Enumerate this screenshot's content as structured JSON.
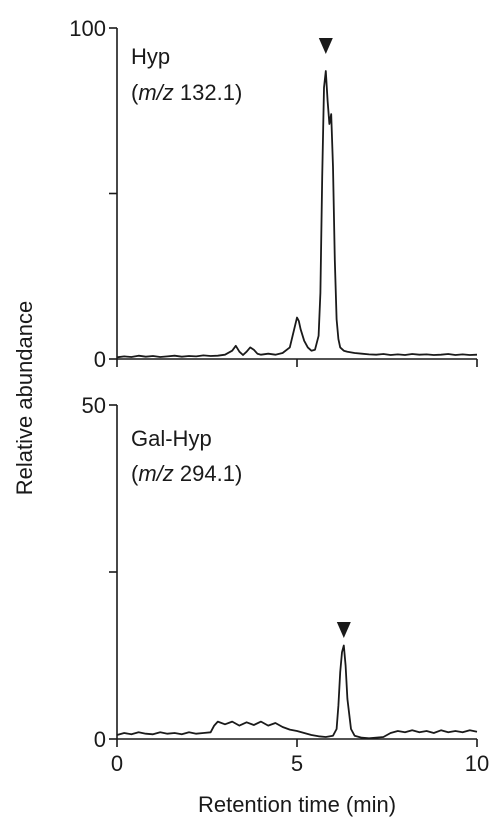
{
  "colors": {
    "trace": "#1a1a1a",
    "axis": "#1a1a1a"
  },
  "chart_data": [
    {
      "type": "line",
      "panel": "top",
      "ylabel": "",
      "xlim": [
        0,
        10
      ],
      "ylim": [
        0,
        100
      ],
      "yticks": [
        0,
        50,
        100
      ],
      "ytick_labels": [
        "0",
        "",
        "100"
      ],
      "xticks": [
        0,
        5,
        10
      ],
      "xtick_labels": [
        "",
        "",
        ""
      ],
      "annotation": {
        "name": "Hyp",
        "mz_prefix": "(",
        "mz_italic": "m/z",
        "mz_value": " 132.1)"
      },
      "marker": {
        "symbol": "▼",
        "x": 5.8
      },
      "series": [
        {
          "x": [
            0,
            0.2,
            0.4,
            0.6,
            0.8,
            1.0,
            1.2,
            1.4,
            1.6,
            1.8,
            2.0,
            2.2,
            2.4,
            2.6,
            2.8,
            3.0,
            3.2,
            3.3,
            3.4,
            3.5,
            3.6,
            3.7,
            3.8,
            3.9,
            4.0,
            4.2,
            4.4,
            4.6,
            4.8,
            4.9,
            5.0,
            5.05,
            5.1,
            5.2,
            5.3,
            5.4,
            5.5,
            5.6,
            5.65,
            5.7,
            5.75,
            5.8,
            5.85,
            5.9,
            5.95,
            6.0,
            6.05,
            6.1,
            6.15,
            6.2,
            6.3,
            6.4,
            6.6,
            6.8,
            7.0,
            7.2,
            7.4,
            7.6,
            7.8,
            8.0,
            8.2,
            8.4,
            8.6,
            8.8,
            9.0,
            9.2,
            9.4,
            9.6,
            9.8,
            10.0
          ],
          "y": [
            0.5,
            0.8,
            0.6,
            1.0,
            0.7,
            0.9,
            0.6,
            0.8,
            1.0,
            0.7,
            0.9,
            0.8,
            1.1,
            0.9,
            1.0,
            1.3,
            2.5,
            4.0,
            2.2,
            1.2,
            2.2,
            3.5,
            2.8,
            1.6,
            1.3,
            1.6,
            1.3,
            1.8,
            3.5,
            8.0,
            12.5,
            11.5,
            9.0,
            5.5,
            3.5,
            2.5,
            2.8,
            7.0,
            20.0,
            55.0,
            82.0,
            87.0,
            78.0,
            71.0,
            74.0,
            58.0,
            30.0,
            12.0,
            6.0,
            3.5,
            2.5,
            2.2,
            1.8,
            1.6,
            1.4,
            1.3,
            1.5,
            1.2,
            1.4,
            1.2,
            1.5,
            1.3,
            1.4,
            1.2,
            1.3,
            1.5,
            1.2,
            1.4,
            1.2,
            1.3
          ]
        }
      ]
    },
    {
      "type": "line",
      "panel": "bottom",
      "xlabel": "Retention time (min)",
      "xlim": [
        0,
        10
      ],
      "ylim": [
        0,
        50
      ],
      "yticks": [
        0,
        25,
        50
      ],
      "ytick_labels": [
        "0",
        "",
        "50"
      ],
      "xticks": [
        0,
        5,
        10
      ],
      "xtick_labels": [
        "0",
        "5",
        "10"
      ],
      "annotation": {
        "name": "Gal-Hyp",
        "mz_prefix": "(",
        "mz_italic": "m/z",
        "mz_value": " 294.1)"
      },
      "marker": {
        "symbol": "▼",
        "x": 6.3
      },
      "series": [
        {
          "x": [
            0,
            0.2,
            0.4,
            0.6,
            0.8,
            1.0,
            1.2,
            1.4,
            1.6,
            1.8,
            2.0,
            2.2,
            2.4,
            2.6,
            2.7,
            2.8,
            3.0,
            3.2,
            3.4,
            3.6,
            3.8,
            4.0,
            4.2,
            4.4,
            4.6,
            4.8,
            5.0,
            5.2,
            5.4,
            5.6,
            5.8,
            6.0,
            6.1,
            6.15,
            6.2,
            6.25,
            6.3,
            6.35,
            6.4,
            6.5,
            6.6,
            6.8,
            7.0,
            7.2,
            7.4,
            7.6,
            7.8,
            8.0,
            8.2,
            8.4,
            8.6,
            8.8,
            9.0,
            9.2,
            9.4,
            9.6,
            9.8,
            10.0
          ],
          "y": [
            0.6,
            0.9,
            0.7,
            1.0,
            0.8,
            0.7,
            1.0,
            0.8,
            0.9,
            0.7,
            1.0,
            0.8,
            0.9,
            1.0,
            2.0,
            2.6,
            2.2,
            2.6,
            2.0,
            2.5,
            2.1,
            2.6,
            2.0,
            2.4,
            1.8,
            1.4,
            1.2,
            0.9,
            0.6,
            0.4,
            0.3,
            0.5,
            1.5,
            5.0,
            10.0,
            13.0,
            14.0,
            11.0,
            6.0,
            1.5,
            0.5,
            0.2,
            0.1,
            0.2,
            0.3,
            0.9,
            1.2,
            1.0,
            1.3,
            1.0,
            1.2,
            0.9,
            1.3,
            1.0,
            1.2,
            1.0,
            1.3,
            1.1
          ]
        }
      ]
    },
    {
      "type": "label",
      "ylabel": "Relative abundance"
    }
  ]
}
